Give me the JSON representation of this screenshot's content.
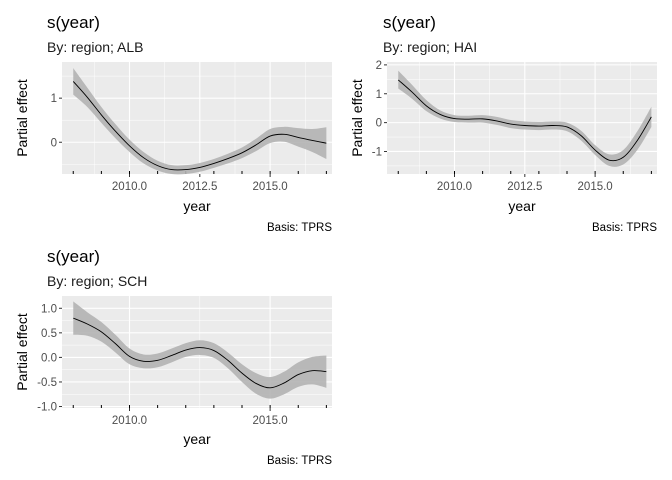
{
  "chart_data": [
    {
      "type": "line",
      "title": "s(year)",
      "subtitle": "By: region; ALB",
      "xlabel": "year",
      "ylabel": "Partial effect",
      "caption": "Basis: TPRS",
      "xlim": [
        2007.6,
        2017.2
      ],
      "ylim": [
        -0.72,
        1.82
      ],
      "xticks": [
        2010.0,
        2012.5,
        2015.0
      ],
      "xtick_labels": [
        "2010.0",
        "2012.5",
        "2015.0"
      ],
      "yticks": [
        0,
        1
      ],
      "ytick_labels": [
        "0",
        "1"
      ],
      "grid": true,
      "series": [
        {
          "x": [
            2008.0,
            2008.5,
            2009.0,
            2009.5,
            2010.0,
            2010.5,
            2011.0,
            2011.5,
            2012.0,
            2012.5,
            2013.0,
            2013.5,
            2014.0,
            2014.5,
            2015.0,
            2015.5,
            2016.0,
            2016.5,
            2017.0
          ],
          "y": [
            1.38,
            1.02,
            0.62,
            0.25,
            -0.08,
            -0.35,
            -0.53,
            -0.62,
            -0.62,
            -0.57,
            -0.48,
            -0.37,
            -0.24,
            -0.06,
            0.14,
            0.18,
            0.11,
            0.04,
            -0.02
          ],
          "lower": [
            1.08,
            0.8,
            0.44,
            0.09,
            -0.22,
            -0.48,
            -0.64,
            -0.72,
            -0.72,
            -0.67,
            -0.58,
            -0.48,
            -0.36,
            -0.2,
            -0.02,
            0.01,
            -0.1,
            -0.22,
            -0.38
          ],
          "upper": [
            1.68,
            1.24,
            0.8,
            0.41,
            0.06,
            -0.22,
            -0.42,
            -0.52,
            -0.52,
            -0.47,
            -0.38,
            -0.26,
            -0.12,
            0.08,
            0.3,
            0.35,
            0.32,
            0.3,
            0.34
          ]
        }
      ]
    },
    {
      "type": "line",
      "title": "s(year)",
      "subtitle": "By: region; HAI",
      "xlabel": "year",
      "ylabel": "Partial effect",
      "caption": "Basis: TPRS",
      "xlim": [
        2007.6,
        2017.2
      ],
      "ylim": [
        -1.78,
        2.1
      ],
      "xticks": [
        2010.0,
        2012.5,
        2015.0
      ],
      "xtick_labels": [
        "2010.0",
        "2012.5",
        "2015.0"
      ],
      "yticks": [
        -1,
        0,
        1,
        2
      ],
      "ytick_labels": [
        "-1",
        "0",
        "1",
        "2"
      ],
      "grid": true,
      "series": [
        {
          "x": [
            2008.0,
            2008.5,
            2009.0,
            2009.5,
            2010.0,
            2010.5,
            2011.0,
            2011.5,
            2012.0,
            2012.5,
            2013.0,
            2013.5,
            2014.0,
            2014.5,
            2015.0,
            2015.5,
            2016.0,
            2016.5,
            2017.0
          ],
          "y": [
            1.48,
            1.05,
            0.58,
            0.28,
            0.14,
            0.12,
            0.13,
            0.06,
            -0.05,
            -0.1,
            -0.12,
            -0.1,
            -0.15,
            -0.45,
            -0.95,
            -1.3,
            -1.2,
            -0.62,
            0.2
          ],
          "lower": [
            1.18,
            0.82,
            0.4,
            0.14,
            0.02,
            0.0,
            0.0,
            -0.08,
            -0.19,
            -0.24,
            -0.26,
            -0.24,
            -0.3,
            -0.62,
            -1.12,
            -1.5,
            -1.45,
            -0.95,
            -0.15
          ],
          "upper": [
            1.8,
            1.3,
            0.78,
            0.42,
            0.26,
            0.24,
            0.26,
            0.2,
            0.09,
            0.04,
            0.02,
            0.04,
            0.0,
            -0.28,
            -0.78,
            -1.1,
            -0.95,
            -0.3,
            0.55
          ]
        }
      ]
    },
    {
      "type": "line",
      "title": "s(year)",
      "subtitle": "By: region; SCH",
      "xlabel": "year",
      "ylabel": "Partial effect",
      "caption": "Basis: TPRS",
      "xlim": [
        2007.6,
        2017.2
      ],
      "ylim": [
        -1.03,
        1.25
      ],
      "xticks": [
        2010.0,
        2015.0
      ],
      "xtick_labels": [
        "2010.0",
        "2015.0"
      ],
      "yticks": [
        -1.0,
        -0.5,
        0.0,
        0.5,
        1.0
      ],
      "ytick_labels": [
        "-1.0",
        "-0.5",
        "0.0",
        "0.5",
        "1.0"
      ],
      "grid": true,
      "series": [
        {
          "x": [
            2008.0,
            2008.5,
            2009.0,
            2009.5,
            2010.0,
            2010.5,
            2011.0,
            2011.5,
            2012.0,
            2012.5,
            2013.0,
            2013.5,
            2014.0,
            2014.5,
            2015.0,
            2015.5,
            2016.0,
            2016.5,
            2017.0
          ],
          "y": [
            0.8,
            0.68,
            0.52,
            0.28,
            0.02,
            -0.08,
            -0.06,
            0.04,
            0.15,
            0.2,
            0.14,
            -0.06,
            -0.32,
            -0.53,
            -0.62,
            -0.52,
            -0.35,
            -0.27,
            -0.29
          ],
          "lower": [
            0.46,
            0.44,
            0.32,
            0.1,
            -0.14,
            -0.22,
            -0.2,
            -0.1,
            0.01,
            0.05,
            -0.01,
            -0.22,
            -0.5,
            -0.74,
            -0.84,
            -0.75,
            -0.6,
            -0.55,
            -0.62
          ],
          "upper": [
            1.14,
            0.92,
            0.72,
            0.46,
            0.18,
            0.06,
            0.08,
            0.18,
            0.29,
            0.35,
            0.29,
            0.1,
            -0.14,
            -0.32,
            -0.4,
            -0.29,
            -0.1,
            0.01,
            0.04
          ]
        }
      ]
    }
  ],
  "colors": {
    "panel_background": "#ebebeb",
    "grid_major": "#ffffff",
    "ribbon": "#b3b3b3",
    "line": "#000000",
    "tick_text": "#4d4d4d"
  }
}
